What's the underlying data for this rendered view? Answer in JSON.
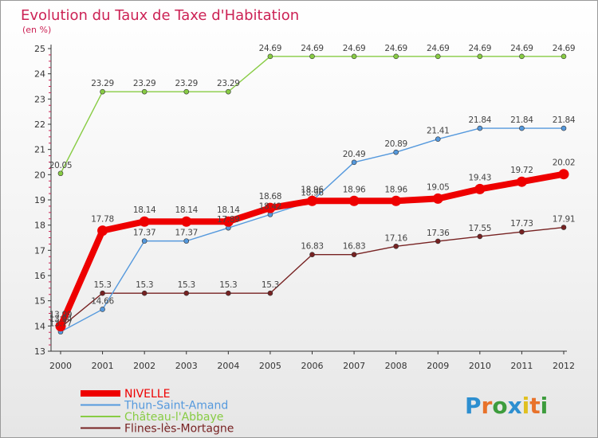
{
  "title": "Evolution du Taux de Taxe d'Habitation",
  "unit_label": "(en %)",
  "logo": {
    "text": "Proxiti"
  },
  "chart_data": {
    "type": "line",
    "title": "Evolution du Taux de Taxe d'Habitation",
    "ylabel": "(en %)",
    "xlabel": "",
    "x": [
      "2000",
      "2001",
      "2002",
      "2003",
      "2004",
      "2005",
      "2006",
      "2007",
      "2008",
      "2009",
      "2010",
      "2011",
      "2012"
    ],
    "ylim": [
      13,
      25
    ],
    "yticks": [
      13,
      14,
      15,
      16,
      17,
      18,
      19,
      20,
      21,
      22,
      23,
      24,
      25
    ],
    "grid": false,
    "legend_position": "bottom-left",
    "series": [
      {
        "name": "NIVELLE",
        "color": "#ee0000",
        "values": [
          13.99,
          17.78,
          18.14,
          18.14,
          18.14,
          18.68,
          18.96,
          18.96,
          18.96,
          19.05,
          19.43,
          19.72,
          20.02
        ],
        "labels": [
          "13.99",
          "17.78",
          "18.14",
          "18.14",
          "18.14",
          "18.68",
          "18.96",
          "18.96",
          "18.96",
          "19.05",
          "19.43",
          "19.72",
          "20.02"
        ]
      },
      {
        "name": "Thun-Saint-Amand",
        "color": "#5599dd",
        "values": [
          13.77,
          14.66,
          17.37,
          17.37,
          17.89,
          18.42,
          18.96,
          20.49,
          20.89,
          21.41,
          21.84,
          21.84,
          21.84
        ],
        "labels": [
          "13.77",
          "14.66",
          "17.37",
          "17.37",
          "17.89",
          "18.42",
          "18.96",
          "20.49",
          "20.89",
          "21.41",
          "21.84",
          "21.84",
          "21.84"
        ]
      },
      {
        "name": "Château-l'Abbaye",
        "color": "#88cc44",
        "values": [
          20.05,
          23.29,
          23.29,
          23.29,
          23.29,
          24.69,
          24.69,
          24.69,
          24.69,
          24.69,
          24.69,
          24.69,
          24.69
        ],
        "labels": [
          "20.05",
          "23.29",
          "23.29",
          "23.29",
          "23.29",
          "24.69",
          "24.69",
          "24.69",
          "24.69",
          "24.69",
          "24.69",
          "24.69",
          "24.69"
        ]
      },
      {
        "name": "Flines-lès-Mortagne",
        "color": "#772222",
        "values": [
          13.94,
          15.3,
          15.3,
          15.3,
          15.3,
          15.3,
          16.83,
          16.83,
          17.16,
          17.36,
          17.55,
          17.73,
          17.91
        ],
        "labels": [
          "13.94",
          "15.3",
          "15.3",
          "15.3",
          "15.3",
          "15.3",
          "16.83",
          "16.83",
          "17.16",
          "17.36",
          "17.55",
          "17.73",
          "17.91"
        ]
      }
    ]
  }
}
